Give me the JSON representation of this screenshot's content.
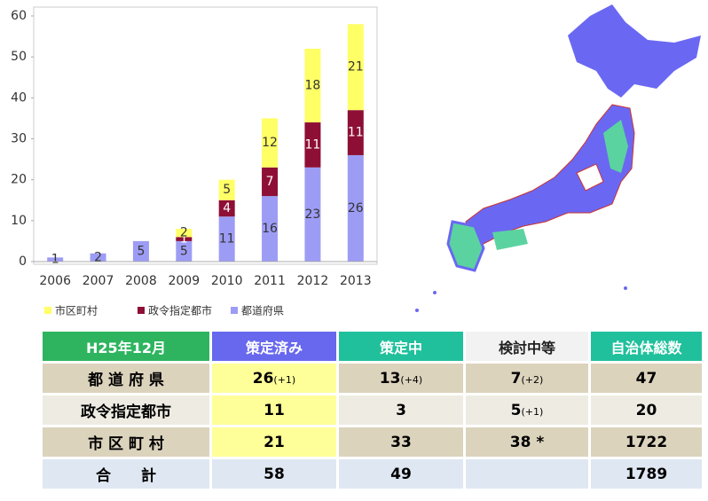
{
  "chart_data": {
    "type": "bar",
    "stacked": true,
    "categories": [
      "2006",
      "2007",
      "2008",
      "2009",
      "2010",
      "2011",
      "2012",
      "2013"
    ],
    "series": [
      {
        "name": "都道府県",
        "color": "#9d9cf5",
        "values": [
          1,
          2,
          5,
          5,
          11,
          16,
          23,
          26
        ]
      },
      {
        "name": "政令指定都市",
        "color": "#8e0f36",
        "values": [
          0,
          0,
          0,
          1,
          4,
          7,
          11,
          11
        ]
      },
      {
        "name": "市区町村",
        "color": "#ffff66",
        "values": [
          0,
          0,
          0,
          2,
          5,
          12,
          18,
          21
        ]
      }
    ],
    "legend_order": [
      2,
      1,
      0
    ],
    "ylim": [
      0,
      60
    ],
    "yticks": [
      0,
      10,
      20,
      30,
      40,
      50,
      60
    ]
  },
  "table": {
    "header": [
      "H25年12月",
      "策定済み",
      "策定中",
      "検討中等",
      "自治体総数"
    ],
    "rows": [
      [
        {
          "text": "都 道 府 県"
        },
        {
          "text": "26",
          "note": "(+1)"
        },
        {
          "text": "13",
          "note": "(+4)"
        },
        {
          "text": "7",
          "note": "(+2)"
        },
        {
          "text": "47"
        }
      ],
      [
        {
          "text": "政令指定都市"
        },
        {
          "text": "11"
        },
        {
          "text": "3"
        },
        {
          "text": "5",
          "note": "(+1)"
        },
        {
          "text": "20"
        }
      ],
      [
        {
          "text": "市 区 町 村"
        },
        {
          "text": "21"
        },
        {
          "text": "33"
        },
        {
          "text": "38 *"
        },
        {
          "text": "1722"
        }
      ],
      [
        {
          "text": "合　　計"
        },
        {
          "text": "58"
        },
        {
          "text": "49"
        },
        null,
        {
          "text": "1789"
        }
      ]
    ]
  }
}
